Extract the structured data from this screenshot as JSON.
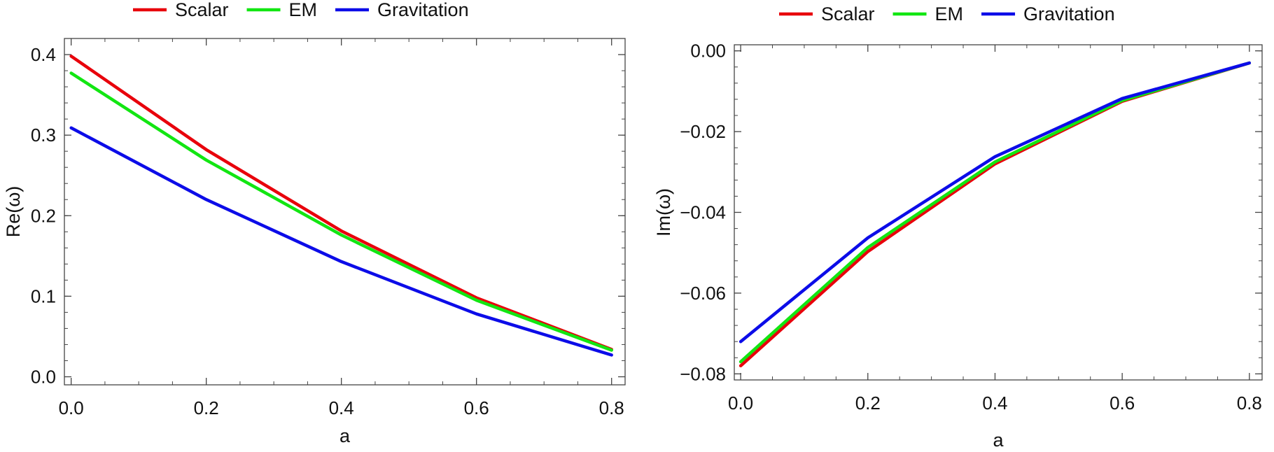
{
  "chart_data": [
    {
      "type": "line",
      "xlabel": "a",
      "ylabel": "Re(ω)",
      "x": [
        0.0,
        0.2,
        0.4,
        0.6,
        0.8
      ],
      "xlim": [
        -0.01,
        0.82
      ],
      "ylim": [
        -0.01,
        0.42
      ],
      "xticks": [
        "0.0",
        "0.2",
        "0.4",
        "0.6",
        "0.8"
      ],
      "yticks": [
        "0.0",
        "0.1",
        "0.2",
        "0.3",
        "0.4"
      ],
      "grid": false,
      "legend_position": "top",
      "series": [
        {
          "name": "Scalar",
          "color": "#e8000b",
          "values": [
            0.398,
            0.282,
            0.181,
            0.098,
            0.034
          ]
        },
        {
          "name": "EM",
          "color": "#12e612",
          "values": [
            0.377,
            0.269,
            0.176,
            0.095,
            0.033
          ]
        },
        {
          "name": "Gravitation",
          "color": "#0c0ce8",
          "values": [
            0.309,
            0.22,
            0.143,
            0.078,
            0.027
          ]
        }
      ]
    },
    {
      "type": "line",
      "xlabel": "a",
      "ylabel": "Im(ω)",
      "x": [
        0.0,
        0.2,
        0.4,
        0.6,
        0.8
      ],
      "xlim": [
        -0.01,
        0.82
      ],
      "ylim": [
        -0.0815,
        0.0015
      ],
      "xticks": [
        "0.0",
        "0.2",
        "0.4",
        "0.6",
        "0.8"
      ],
      "yticks": [
        "0.00",
        "−0.02",
        "−0.04",
        "−0.06",
        "−0.08"
      ],
      "grid": false,
      "legend_position": "top",
      "series": [
        {
          "name": "Scalar",
          "color": "#e8000b",
          "values": [
            -0.078,
            -0.0497,
            -0.028,
            -0.0125,
            -0.003
          ]
        },
        {
          "name": "EM",
          "color": "#12e612",
          "values": [
            -0.077,
            -0.0487,
            -0.0275,
            -0.0123,
            -0.003
          ]
        },
        {
          "name": "Gravitation",
          "color": "#0c0ce8",
          "values": [
            -0.072,
            -0.0463,
            -0.0262,
            -0.0118,
            -0.003
          ]
        }
      ]
    }
  ]
}
